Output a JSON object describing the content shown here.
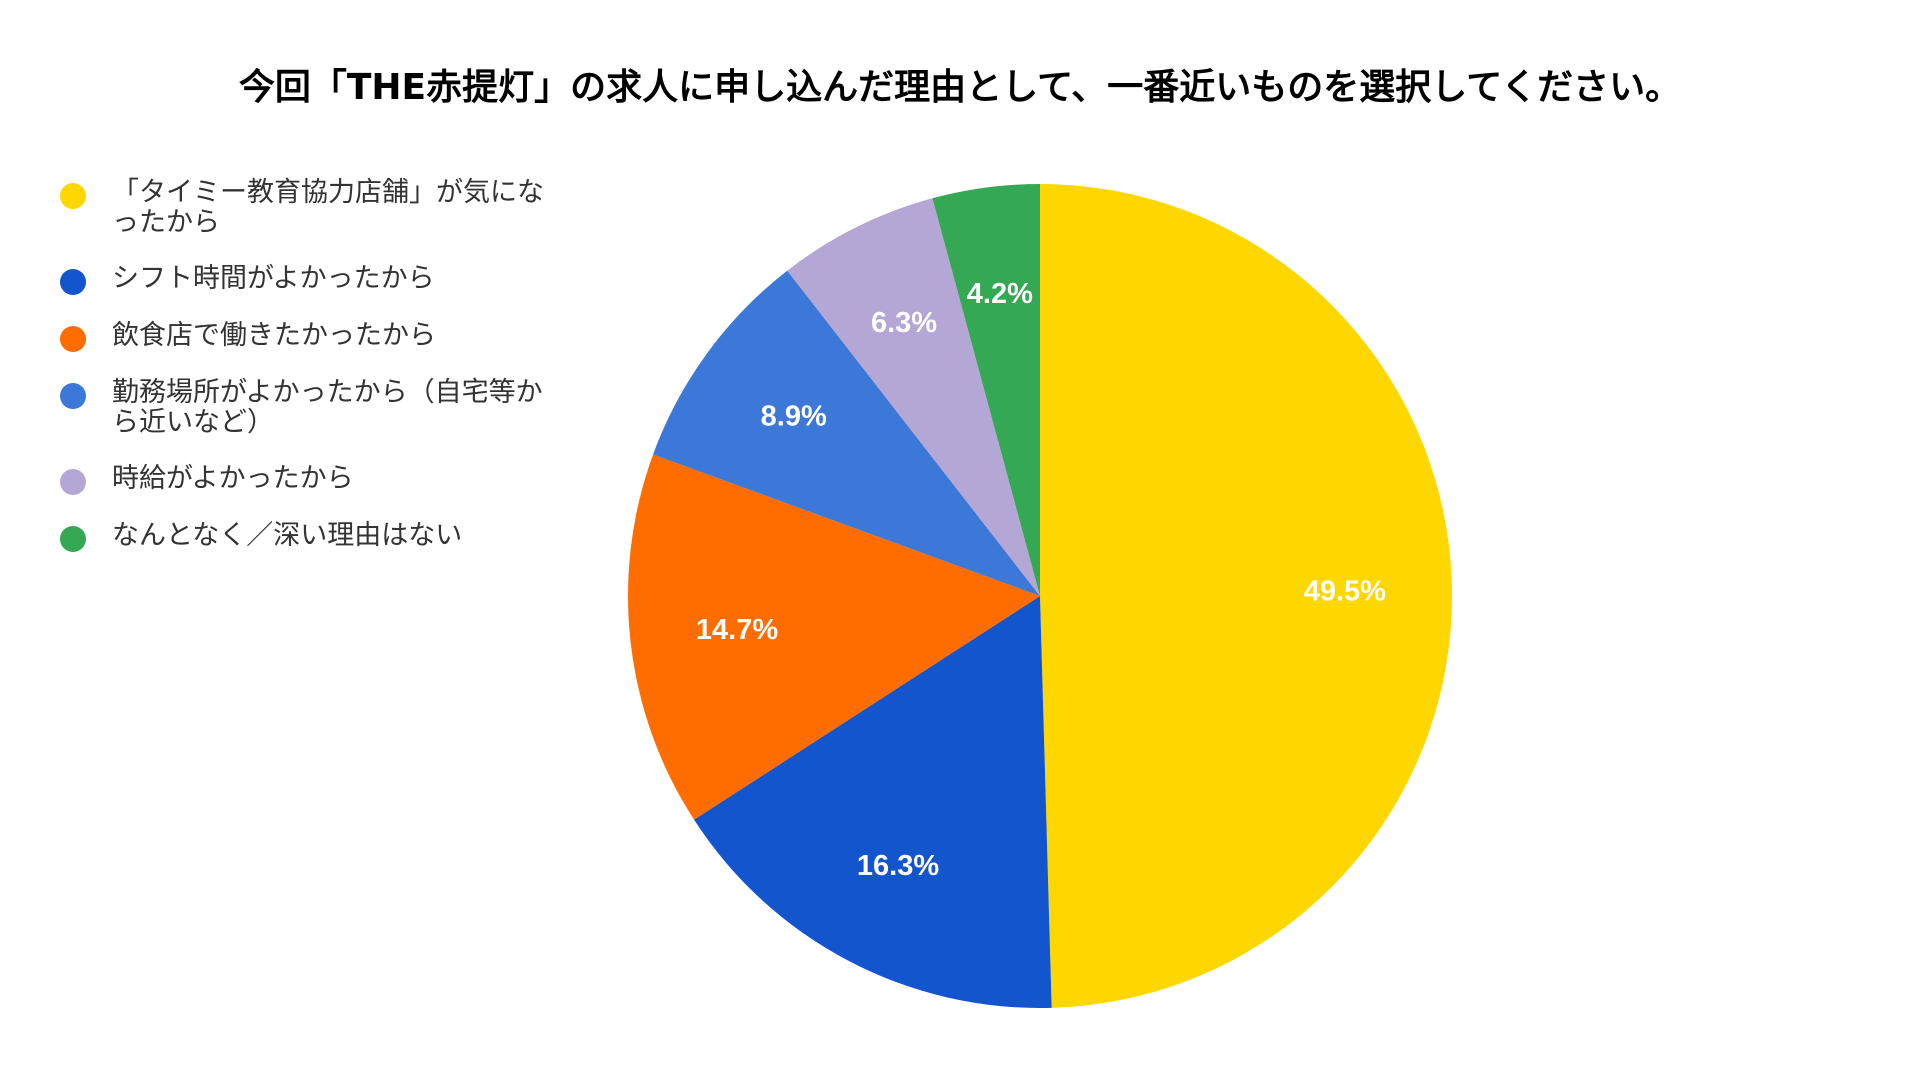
{
  "chart_data": {
    "type": "pie",
    "title": "今回「THE赤提灯」の求人に申し込んだ理由として、一番近いものを選択してください。",
    "legend_position": "left",
    "start_angle": "12 o'clock",
    "direction": "clockwise",
    "slices": [
      {
        "label": "「タイミー教育協力店舗」が気になったから",
        "value": 49.5,
        "value_label": "49.5%",
        "color": "#FFD700"
      },
      {
        "label": "シフト時間がよかったから",
        "value": 16.3,
        "value_label": "16.3%",
        "color": "#1355CC"
      },
      {
        "label": "飲食店で働きたかったから",
        "value": 14.7,
        "value_label": "14.7%",
        "color": "#FF6D01"
      },
      {
        "label": "勤務場所がよかったから（自宅等から近いなど）",
        "value": 8.9,
        "value_label": "8.9%",
        "color": "#3C78D8"
      },
      {
        "label": "時給がよかったから",
        "value": 6.3,
        "value_label": "6.3%",
        "color": "#B4A7D6"
      },
      {
        "label": "なんとなく／深い理由はない",
        "value": 4.2,
        "value_label": "4.2%",
        "color": "#34A853"
      }
    ]
  }
}
